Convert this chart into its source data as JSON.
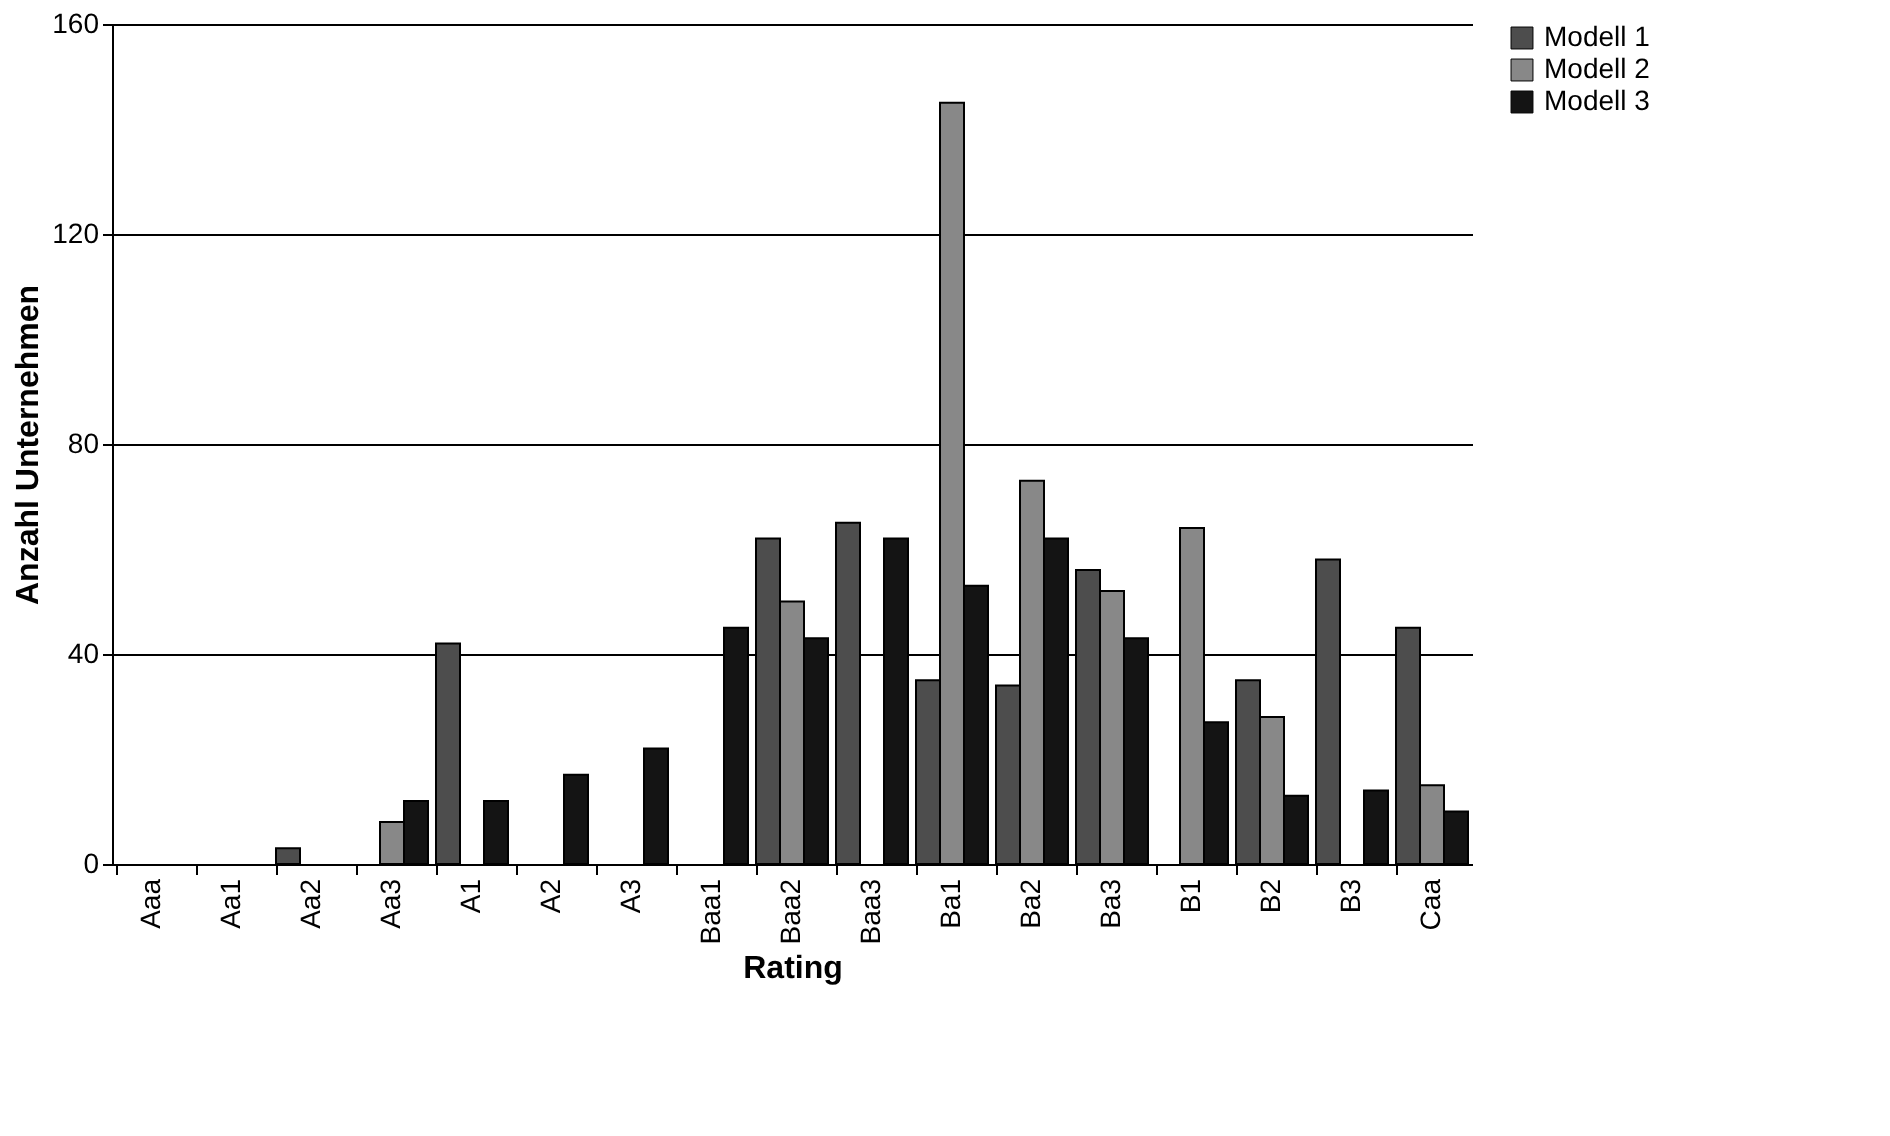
{
  "chart_data": {
    "type": "bar",
    "xlabel": "Rating",
    "ylabel": "Anzahl Unternehmen",
    "categories": [
      "Aaa",
      "Aa1",
      "Aa2",
      "Aa3",
      "A1",
      "A2",
      "A3",
      "Baa1",
      "Baa2",
      "Baa3",
      "Ba1",
      "Ba2",
      "Ba3",
      "B1",
      "B2",
      "B3",
      "Caa"
    ],
    "series": [
      {
        "name": "Modell 1",
        "color": "#4d4d4d",
        "values": [
          null,
          null,
          3,
          null,
          42,
          null,
          null,
          null,
          62,
          65,
          35,
          34,
          56,
          null,
          35,
          58,
          45
        ]
      },
      {
        "name": "Modell 2",
        "color": "#888888",
        "values": [
          null,
          null,
          null,
          8,
          null,
          null,
          null,
          null,
          50,
          null,
          145,
          73,
          52,
          64,
          28,
          null,
          15
        ]
      },
      {
        "name": "Modell 3",
        "color": "#141414",
        "values": [
          null,
          null,
          null,
          12,
          12,
          17,
          22,
          45,
          43,
          62,
          53,
          62,
          43,
          27,
          13,
          14,
          10
        ]
      }
    ],
    "ylim": [
      0,
      160
    ],
    "yticks": [
      0,
      40,
      80,
      120,
      160
    ],
    "grid": "y",
    "legend": "right"
  }
}
